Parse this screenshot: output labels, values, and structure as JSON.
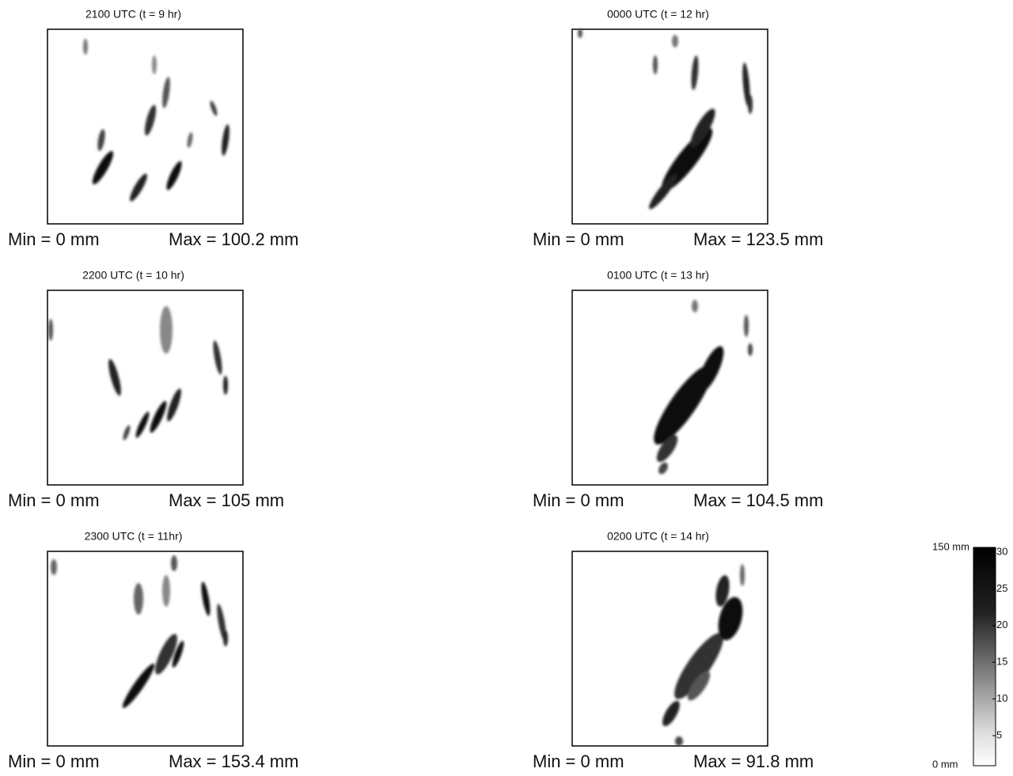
{
  "panels": [
    {
      "title": "2100 UTC (t = 9 hr)",
      "min": "Min = 0 mm",
      "max": "Max = 100.2 mm"
    },
    {
      "title": "2200 UTC (t = 10 hr)",
      "min": "Min = 0 mm",
      "max": "Max = 105 mm"
    },
    {
      "title": "2300 UTC (t = 11hr)",
      "min": "Min = 0 mm",
      "max": "Max = 153.4 mm"
    },
    {
      "title": "0000 UTC (t = 12 hr)",
      "min": "Min = 0 mm",
      "max": "Max = 123.5 mm"
    },
    {
      "title": "0100 UTC (t = 13 hr)",
      "min": "Min = 0 mm",
      "max": "Max = 104.5 mm"
    },
    {
      "title": "0200 UTC (t = 14 hr)",
      "min": "Min = 0 mm",
      "max": "Max = 91.8 mm"
    }
  ],
  "colorbar": {
    "top_label": "150 mm",
    "bottom_label": "0 mm",
    "ticks": [
      "30",
      "25",
      "20",
      "15",
      "10",
      "5"
    ]
  }
}
